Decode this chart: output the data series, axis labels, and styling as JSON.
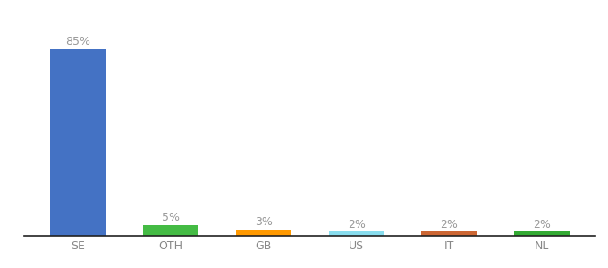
{
  "categories": [
    "SE",
    "OTH",
    "GB",
    "US",
    "IT",
    "NL"
  ],
  "values": [
    85,
    5,
    3,
    2,
    2,
    2
  ],
  "bar_colors": [
    "#4472c4",
    "#44bb44",
    "#ff9900",
    "#88ddee",
    "#cc6633",
    "#33aa33"
  ],
  "ylim": [
    0,
    95
  ],
  "label_fontsize": 9,
  "tick_fontsize": 9,
  "background_color": "#ffffff",
  "bar_width": 0.6,
  "label_color": "#999999",
  "tick_color": "#888888"
}
